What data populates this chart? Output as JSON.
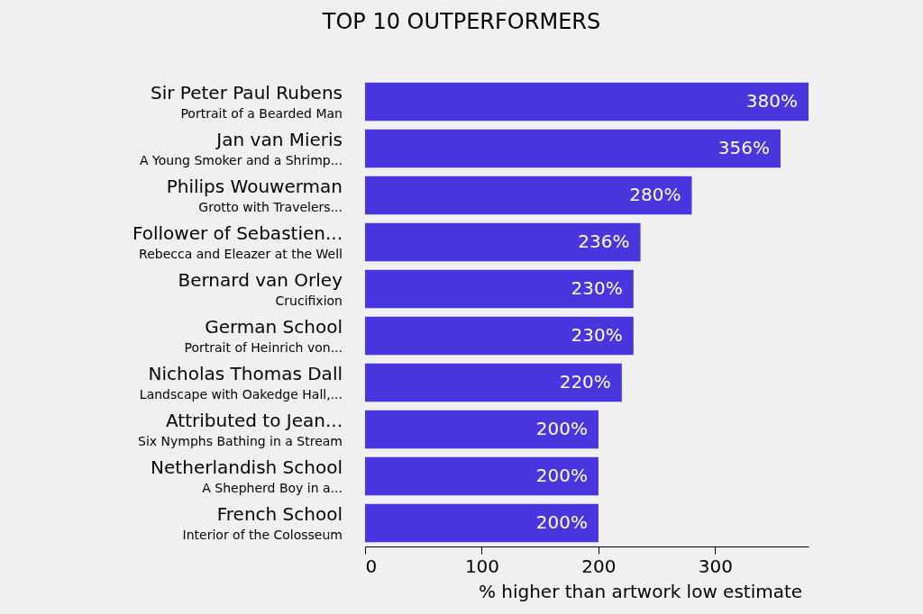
{
  "chart_data": {
    "type": "bar",
    "orientation": "horizontal",
    "title": "TOP 10 OUTPERFORMERS",
    "xlabel": "% higher than artwork low estimate",
    "categories": [
      "Sir Peter Paul Rubens\nPortrait of a Bearded Man",
      "Jan van Mieris\nA Young Smoker and a Shrimp...",
      "Philips Wouwerman\nGrotto with Travelers...",
      "Follower of Sebastien...\nRebecca and Eleazer at the Well",
      "Bernard van Orley\nCrucifixion",
      "German School\nPortrait of Heinrich von...",
      "Nicholas Thomas Dall\nLandscape with Oakedge Hall,...",
      "Attributed to Jean...\nSix Nymphs Bathing in a Stream",
      "Netherlandish School\nA Shepherd Boy in a...",
      "French School\nInterior of the Colosseum"
    ],
    "values": [
      380,
      356,
      280,
      236,
      230,
      230,
      220,
      200,
      200,
      200
    ],
    "value_labels": [
      "380%",
      "356%",
      "280%",
      "236%",
      "230%",
      "230%",
      "220%",
      "200%",
      "200%",
      "200%"
    ],
    "color": "#4a36de",
    "xlim": [
      0,
      380
    ],
    "xticks": [
      0,
      100,
      200,
      300
    ],
    "grid": false
  }
}
